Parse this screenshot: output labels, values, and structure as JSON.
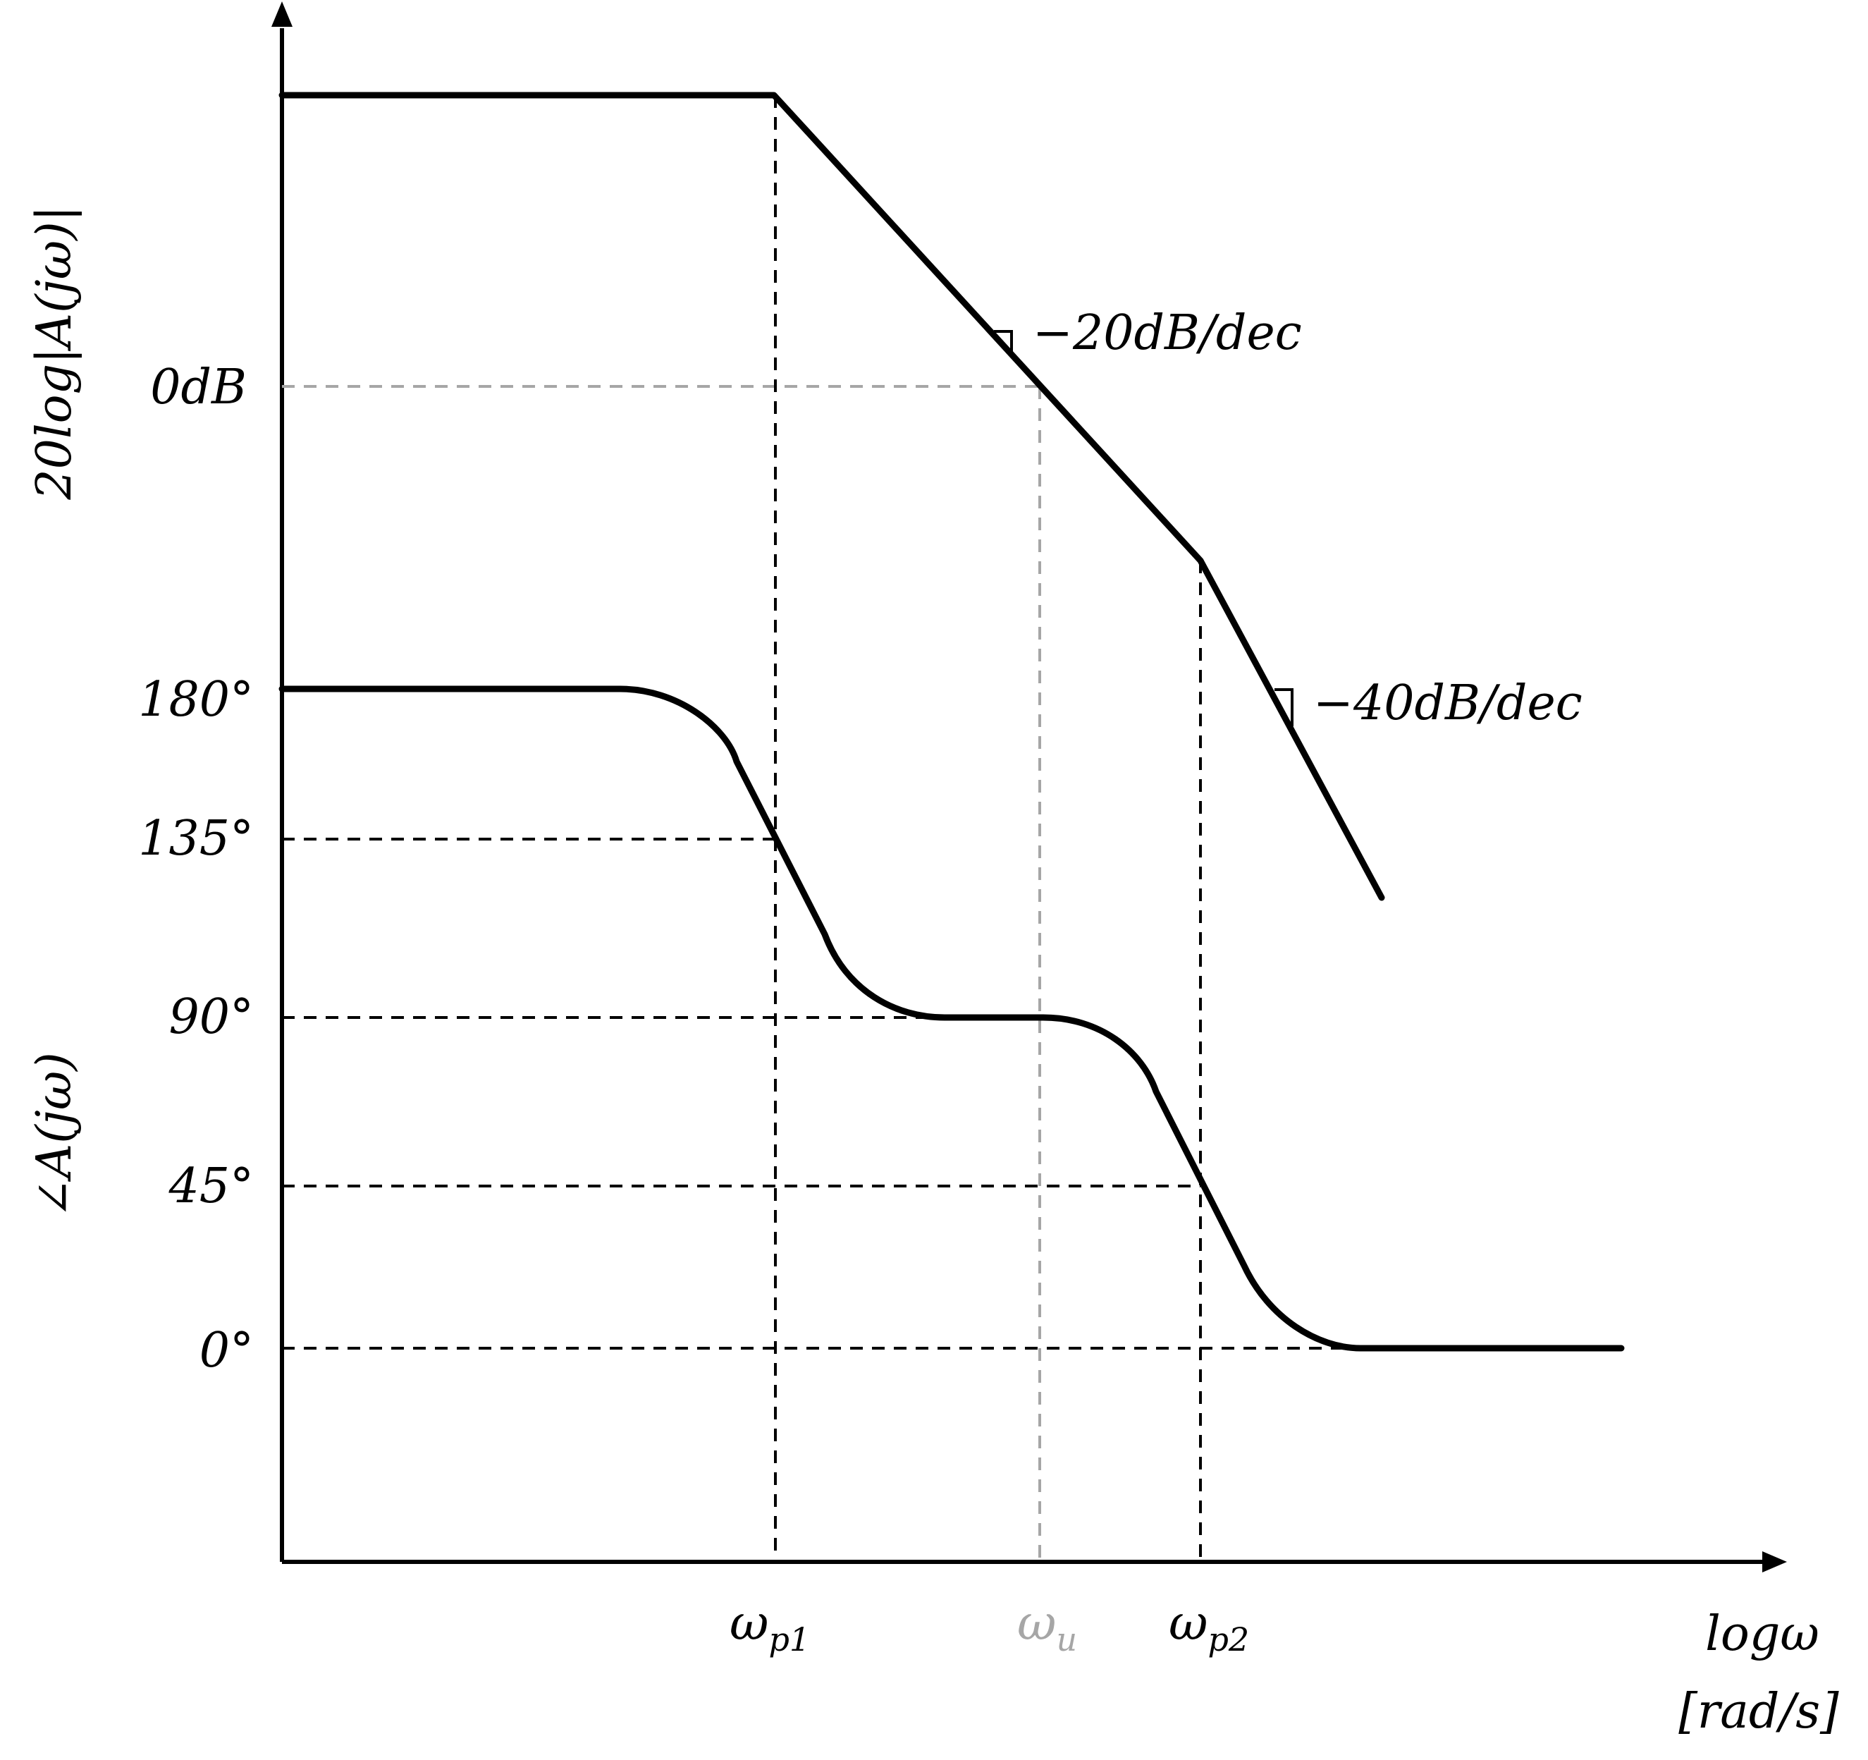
{
  "chart_data": {
    "type": "line",
    "title": "",
    "x_axis": {
      "label_line1": "logω",
      "label_line2": "[rad/s]",
      "scale": "log",
      "ticks": [
        {
          "symbol": "ω",
          "subscript": "p1",
          "color": "#000000"
        },
        {
          "symbol": "ω",
          "subscript": "u",
          "color": "#a6a6a6"
        },
        {
          "symbol": "ω",
          "subscript": "p2",
          "color": "#000000"
        }
      ]
    },
    "magnitude_plot": {
      "ylabel": "20log|A(jω)|",
      "reference_tick": "0dB",
      "slopes": [
        {
          "label": "−20dB/dec",
          "between": [
            "ωp1",
            "ωp2"
          ]
        },
        {
          "label": "−40dB/dec",
          "after": "ωp2"
        }
      ]
    },
    "phase_plot": {
      "ylabel": "∠A(jω)",
      "ticks": [
        "180°",
        "135°",
        "90°",
        "45°",
        "0°"
      ],
      "values_deg": {
        "low_frequency": 180,
        "at_wp1": 135,
        "between_poles": 90,
        "at_wp2": 45,
        "high_frequency": 0
      }
    },
    "grid": false,
    "legend": "none"
  },
  "colors": {
    "curve": "#000000",
    "guide": "#000000",
    "unity_gain_guide": "#a6a6a6"
  }
}
